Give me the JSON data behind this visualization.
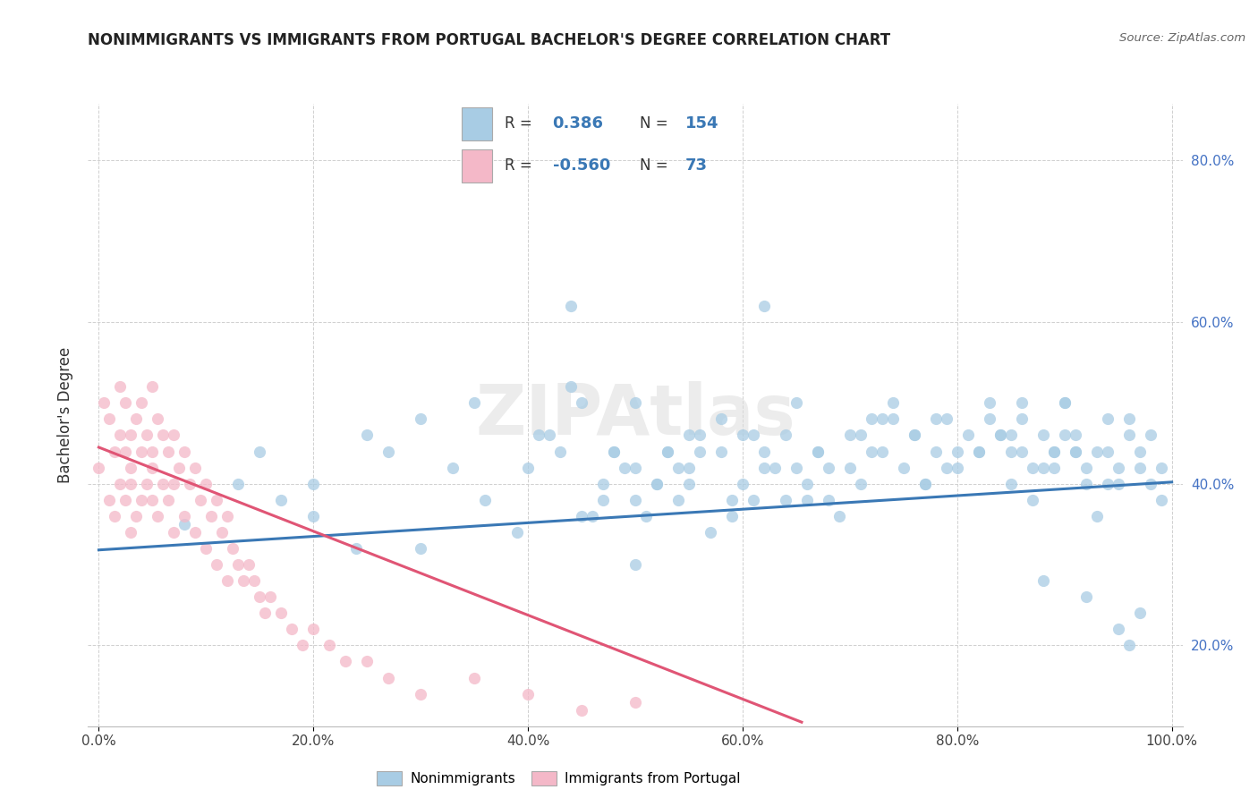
{
  "title": "NONIMMIGRANTS VS IMMIGRANTS FROM PORTUGAL BACHELOR'S DEGREE CORRELATION CHART",
  "source": "Source: ZipAtlas.com",
  "ylabel": "Bachelor's Degree",
  "watermark": "ZIPAtlas",
  "xlim": [
    -0.01,
    1.01
  ],
  "ylim": [
    0.1,
    0.87
  ],
  "x_ticks": [
    0.0,
    0.2,
    0.4,
    0.6,
    0.8,
    1.0
  ],
  "x_tick_labels": [
    "0.0%",
    "20.0%",
    "40.0%",
    "60.0%",
    "80.0%",
    "100.0%"
  ],
  "y_ticks": [
    0.2,
    0.4,
    0.6,
    0.8
  ],
  "y_tick_labels": [
    "20.0%",
    "40.0%",
    "60.0%",
    "80.0%"
  ],
  "blue_dot_color": "#a8cce4",
  "pink_dot_color": "#f4b8c8",
  "blue_line_color": "#3a78b5",
  "pink_line_color": "#e05575",
  "blue_line": [
    0.0,
    1.0,
    0.318,
    0.402
  ],
  "pink_line": [
    0.0,
    0.655,
    0.445,
    0.105
  ],
  "nonimmigrants_x": [
    0.08,
    0.13,
    0.17,
    0.2,
    0.24,
    0.27,
    0.3,
    0.33,
    0.36,
    0.39,
    0.42,
    0.45,
    0.47,
    0.48,
    0.5,
    0.51,
    0.52,
    0.53,
    0.54,
    0.55,
    0.56,
    0.57,
    0.58,
    0.59,
    0.6,
    0.61,
    0.62,
    0.63,
    0.64,
    0.65,
    0.66,
    0.67,
    0.68,
    0.69,
    0.7,
    0.71,
    0.72,
    0.73,
    0.74,
    0.75,
    0.76,
    0.77,
    0.78,
    0.79,
    0.8,
    0.81,
    0.82,
    0.83,
    0.84,
    0.85,
    0.86,
    0.87,
    0.88,
    0.89,
    0.9,
    0.91,
    0.92,
    0.93,
    0.94,
    0.95,
    0.96,
    0.97,
    0.98,
    0.99,
    0.44,
    0.5,
    0.56,
    0.62,
    0.68,
    0.74,
    0.8,
    0.86,
    0.92,
    0.41,
    0.47,
    0.53,
    0.59,
    0.65,
    0.71,
    0.77,
    0.83,
    0.89,
    0.95,
    0.43,
    0.49,
    0.55,
    0.61,
    0.67,
    0.73,
    0.79,
    0.85,
    0.91,
    0.97,
    0.46,
    0.52,
    0.58,
    0.64,
    0.7,
    0.76,
    0.82,
    0.88,
    0.94,
    0.48,
    0.54,
    0.6,
    0.66,
    0.72,
    0.78,
    0.84,
    0.9,
    0.96,
    0.4,
    0.35,
    0.3,
    0.25,
    0.2,
    0.15,
    0.85,
    0.87,
    0.89,
    0.91,
    0.93,
    0.95,
    0.97,
    0.99,
    0.86,
    0.88,
    0.9,
    0.92,
    0.94,
    0.96,
    0.98,
    0.44,
    0.5,
    0.62,
    0.5,
    0.55,
    0.45
  ],
  "nonimmigrants_y": [
    0.35,
    0.4,
    0.38,
    0.36,
    0.32,
    0.44,
    0.48,
    0.42,
    0.38,
    0.34,
    0.46,
    0.5,
    0.38,
    0.44,
    0.42,
    0.36,
    0.4,
    0.44,
    0.38,
    0.42,
    0.46,
    0.34,
    0.48,
    0.36,
    0.4,
    0.38,
    0.44,
    0.42,
    0.46,
    0.5,
    0.38,
    0.44,
    0.42,
    0.36,
    0.46,
    0.4,
    0.48,
    0.44,
    0.5,
    0.42,
    0.46,
    0.4,
    0.44,
    0.48,
    0.42,
    0.46,
    0.44,
    0.5,
    0.46,
    0.44,
    0.48,
    0.42,
    0.46,
    0.44,
    0.5,
    0.46,
    0.42,
    0.44,
    0.48,
    0.42,
    0.46,
    0.44,
    0.4,
    0.42,
    0.52,
    0.3,
    0.44,
    0.42,
    0.38,
    0.48,
    0.44,
    0.5,
    0.26,
    0.46,
    0.4,
    0.44,
    0.38,
    0.42,
    0.46,
    0.4,
    0.48,
    0.44,
    0.22,
    0.44,
    0.42,
    0.4,
    0.46,
    0.44,
    0.48,
    0.42,
    0.46,
    0.44,
    0.24,
    0.36,
    0.4,
    0.44,
    0.38,
    0.42,
    0.46,
    0.44,
    0.28,
    0.4,
    0.44,
    0.42,
    0.46,
    0.4,
    0.44,
    0.48,
    0.46,
    0.5,
    0.2,
    0.42,
    0.5,
    0.32,
    0.46,
    0.4,
    0.44,
    0.4,
    0.38,
    0.42,
    0.44,
    0.36,
    0.4,
    0.42,
    0.38,
    0.44,
    0.42,
    0.46,
    0.4,
    0.44,
    0.48,
    0.46,
    0.62,
    0.5,
    0.62,
    0.38,
    0.46,
    0.36
  ],
  "immigrants_x": [
    0.0,
    0.005,
    0.01,
    0.01,
    0.015,
    0.015,
    0.02,
    0.02,
    0.02,
    0.025,
    0.025,
    0.025,
    0.03,
    0.03,
    0.03,
    0.03,
    0.035,
    0.035,
    0.04,
    0.04,
    0.04,
    0.045,
    0.045,
    0.05,
    0.05,
    0.05,
    0.05,
    0.055,
    0.055,
    0.06,
    0.06,
    0.065,
    0.065,
    0.07,
    0.07,
    0.07,
    0.075,
    0.08,
    0.08,
    0.085,
    0.09,
    0.09,
    0.095,
    0.1,
    0.1,
    0.105,
    0.11,
    0.11,
    0.115,
    0.12,
    0.12,
    0.125,
    0.13,
    0.135,
    0.14,
    0.145,
    0.15,
    0.155,
    0.16,
    0.17,
    0.18,
    0.19,
    0.2,
    0.215,
    0.23,
    0.25,
    0.27,
    0.3,
    0.35,
    0.4,
    0.45,
    0.5
  ],
  "immigrants_y": [
    0.42,
    0.5,
    0.48,
    0.38,
    0.44,
    0.36,
    0.46,
    0.4,
    0.52,
    0.44,
    0.38,
    0.5,
    0.46,
    0.4,
    0.34,
    0.42,
    0.48,
    0.36,
    0.44,
    0.38,
    0.5,
    0.46,
    0.4,
    0.44,
    0.38,
    0.52,
    0.42,
    0.48,
    0.36,
    0.46,
    0.4,
    0.44,
    0.38,
    0.46,
    0.4,
    0.34,
    0.42,
    0.44,
    0.36,
    0.4,
    0.42,
    0.34,
    0.38,
    0.4,
    0.32,
    0.36,
    0.38,
    0.3,
    0.34,
    0.36,
    0.28,
    0.32,
    0.3,
    0.28,
    0.3,
    0.28,
    0.26,
    0.24,
    0.26,
    0.24,
    0.22,
    0.2,
    0.22,
    0.2,
    0.18,
    0.18,
    0.16,
    0.14,
    0.16,
    0.14,
    0.12,
    0.13
  ]
}
